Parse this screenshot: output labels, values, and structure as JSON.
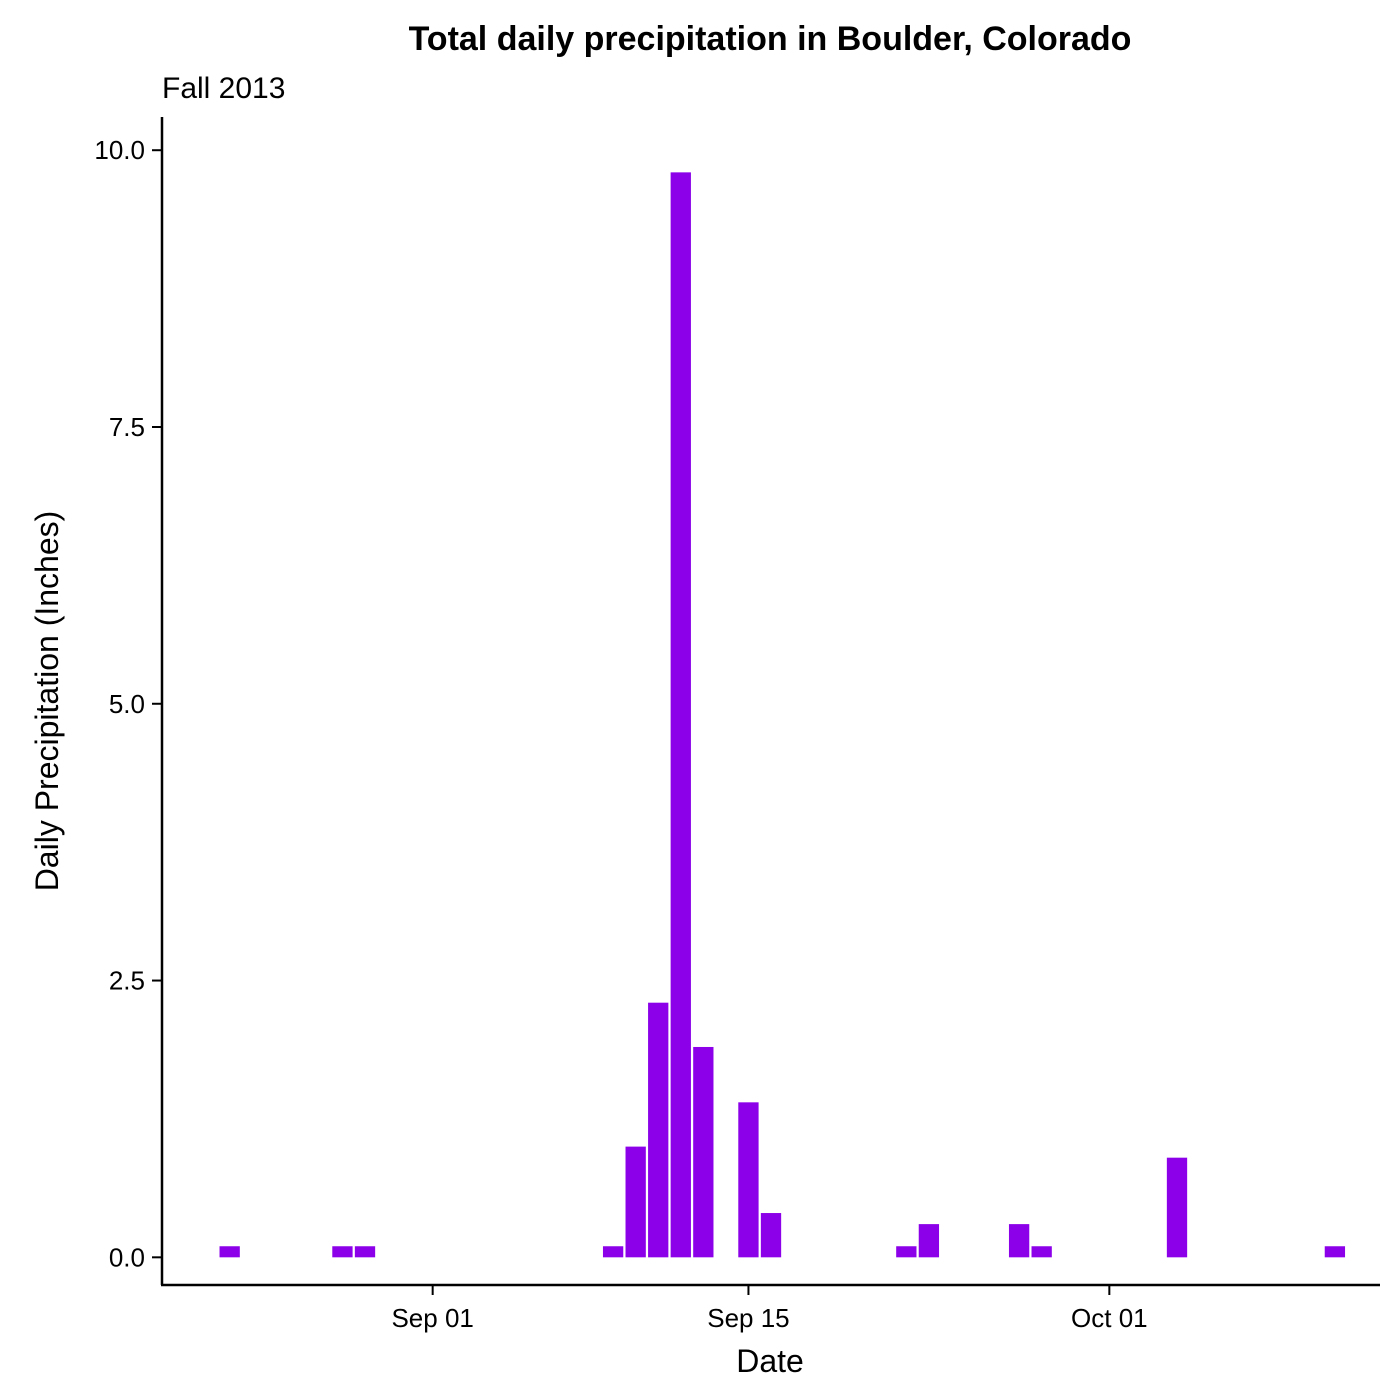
{
  "chart_data": {
    "type": "bar",
    "title": "Total daily precipitation in Boulder, Colorado",
    "subtitle": "Fall 2013",
    "xlabel": "Date",
    "ylabel": "Daily Precipitation (Inches)",
    "bar_color": "#8B00E8",
    "grid": false,
    "ylim": [
      -0.25,
      10.3
    ],
    "yticks": [
      0.0,
      2.5,
      5.0,
      7.5,
      10.0
    ],
    "ytick_labels": [
      "0.0",
      "2.5",
      "5.0",
      "7.5",
      "10.0"
    ],
    "xlim": [
      "2013-08-20",
      "2013-10-13"
    ],
    "xticks": [
      "2013-09-01",
      "2013-09-15",
      "2013-10-01"
    ],
    "xtick_labels": [
      "Sep 01",
      "Sep 15",
      "Oct 01"
    ],
    "x": [
      "2013-08-23",
      "2013-08-28",
      "2013-08-29",
      "2013-09-09",
      "2013-09-10",
      "2013-09-11",
      "2013-09-12",
      "2013-09-13",
      "2013-09-15",
      "2013-09-16",
      "2013-09-22",
      "2013-09-23",
      "2013-09-27",
      "2013-09-28",
      "2013-10-04",
      "2013-10-11"
    ],
    "values": [
      0.1,
      0.1,
      0.1,
      0.1,
      1.0,
      2.3,
      9.8,
      1.9,
      1.4,
      0.4,
      0.1,
      0.3,
      0.3,
      0.1,
      0.9,
      0.1
    ]
  }
}
